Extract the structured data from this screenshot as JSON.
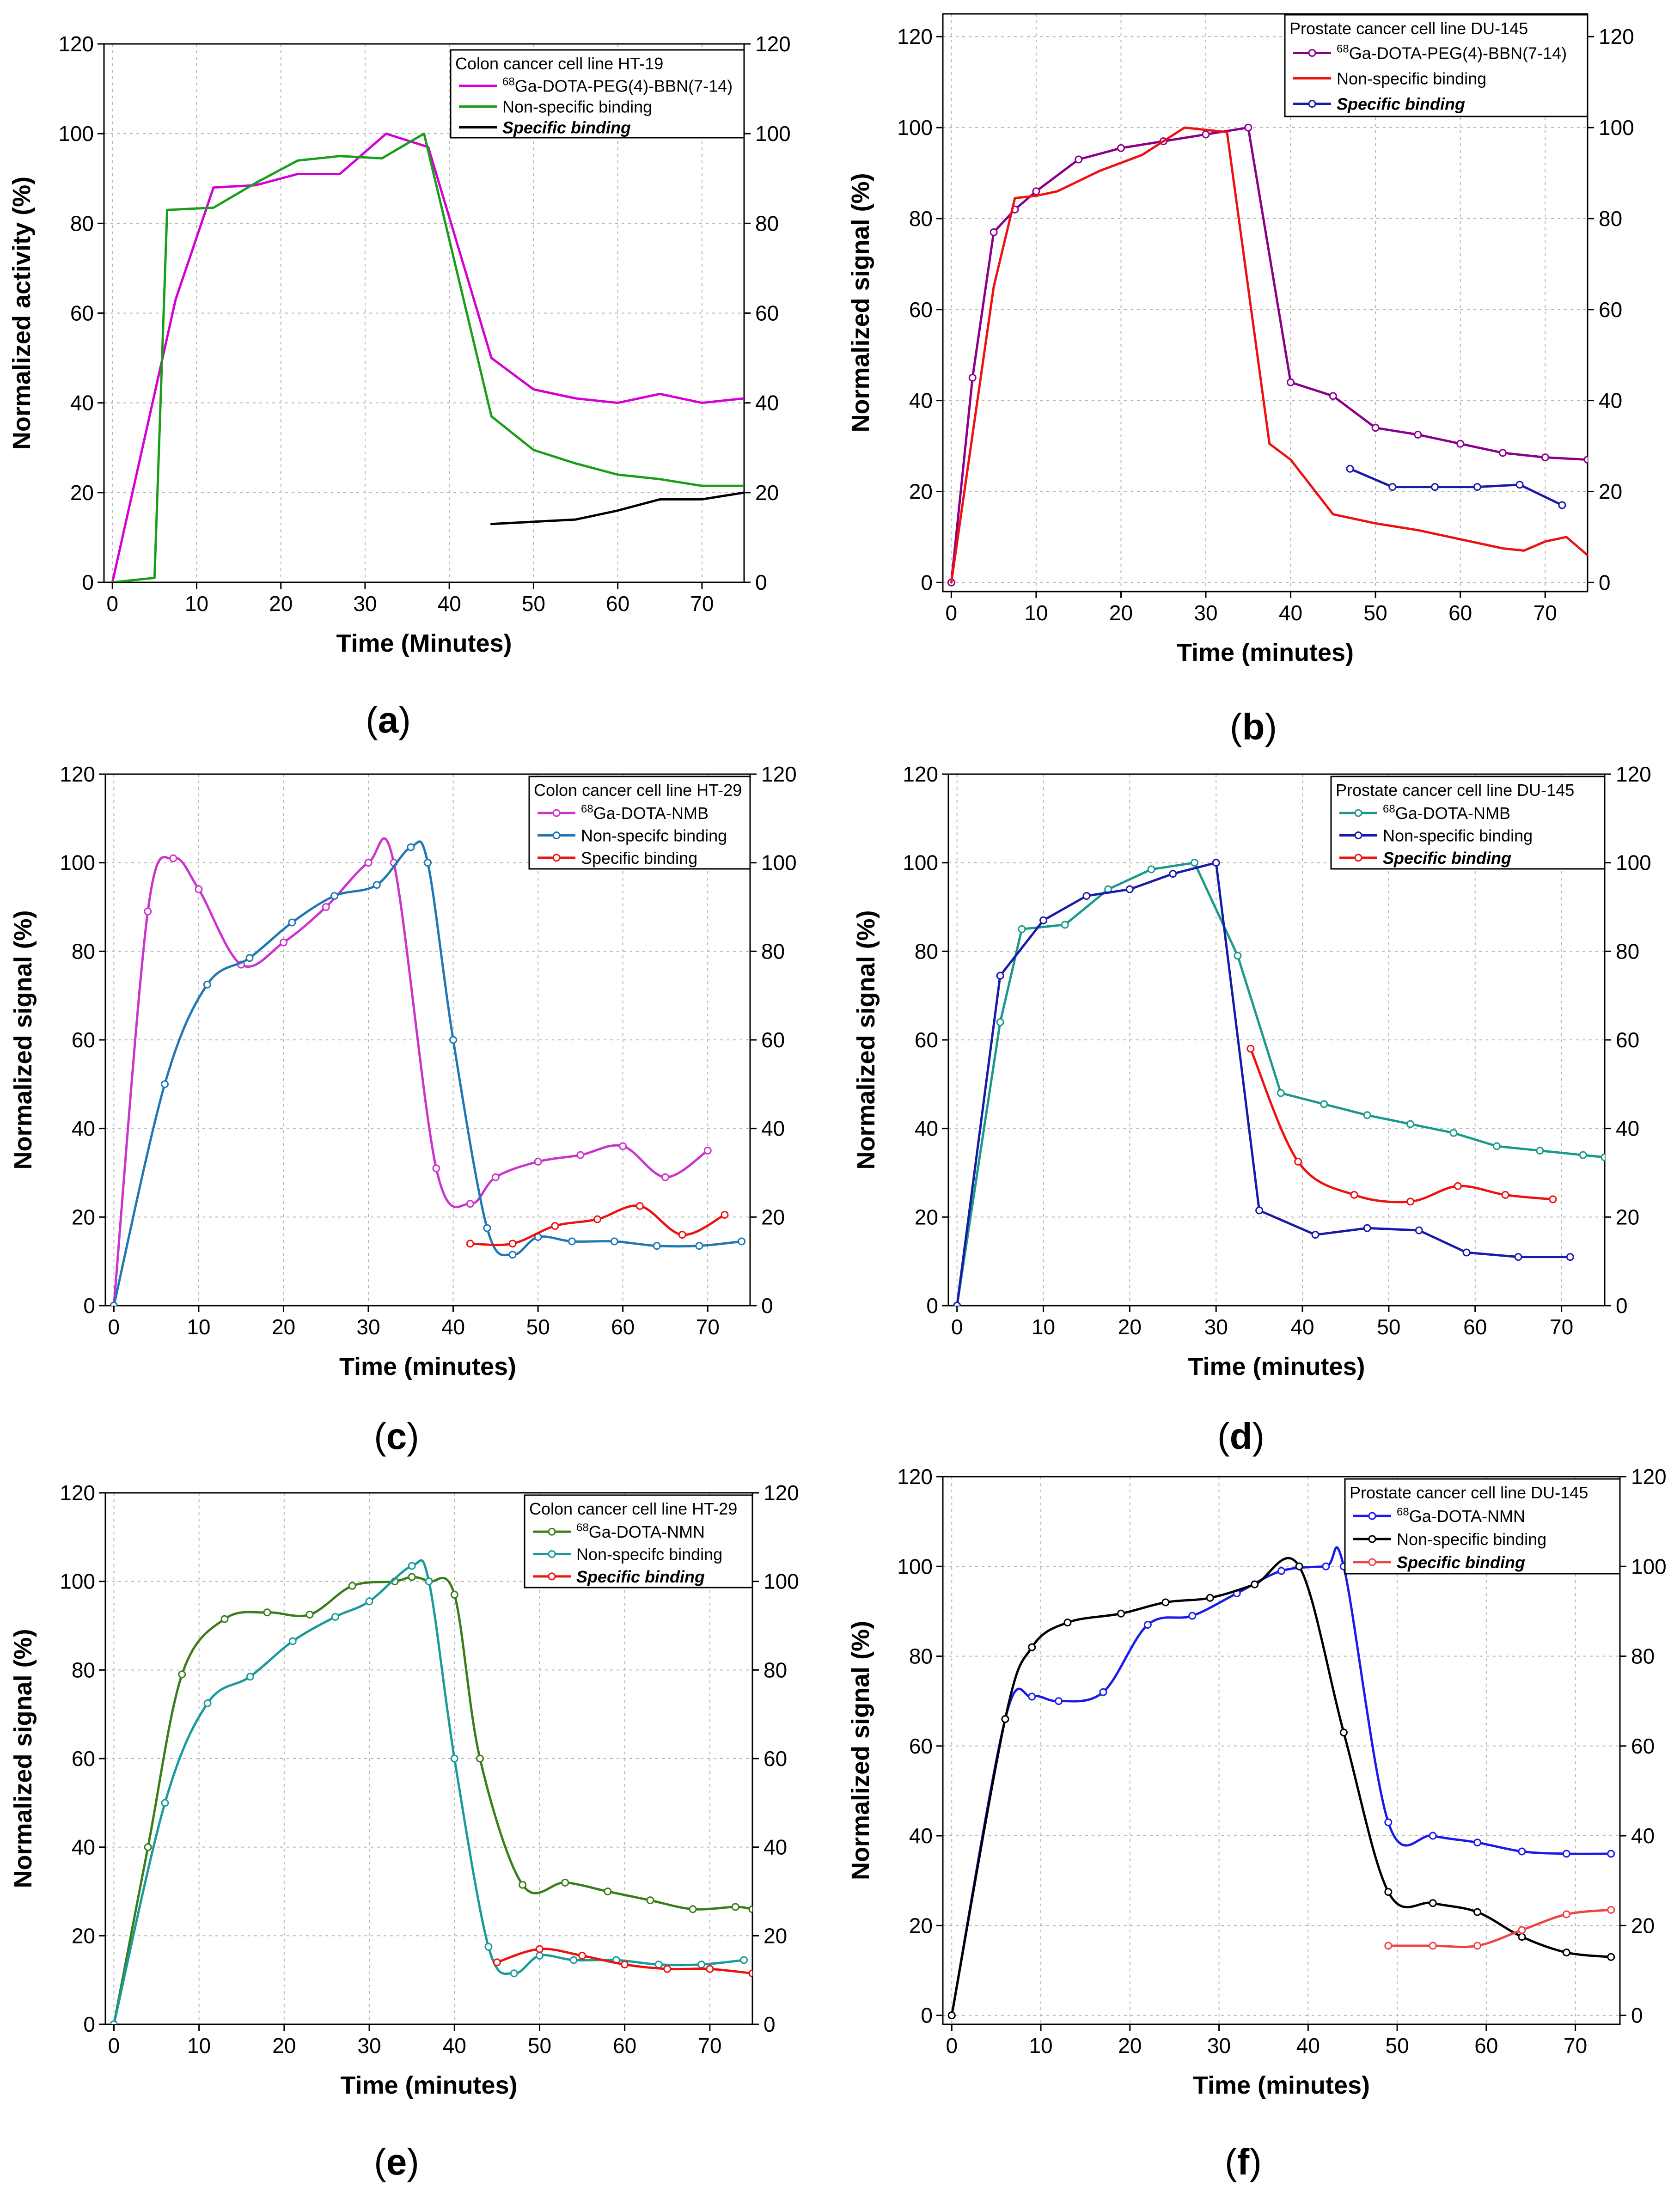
{
  "chart_data": [
    {
      "panel_label": "a",
      "type": "line",
      "xlabel": "Time (Minutes)",
      "ylabel": "Normalized activity (%)",
      "xlim": [
        -1,
        75
      ],
      "ylim": [
        0,
        120
      ],
      "xticks": [
        0,
        10,
        20,
        30,
        40,
        50,
        60,
        70
      ],
      "yticks": [
        0,
        20,
        40,
        60,
        80,
        100,
        120
      ],
      "legend_title": "Colon cancer cell line HT-19",
      "legend_position": "top-right",
      "series": [
        {
          "name": "68Ga-DOTA-PEG(4)-BBN(7-14)",
          "sup": "68",
          "name_rest": "Ga-DOTA-PEG(4)-BBN(7-14)",
          "italic": false,
          "color": "#d400d4",
          "smooth": false,
          "markers": false,
          "x": [
            0,
            7.5,
            12,
            17,
            22,
            27,
            32.5,
            37.5,
            45,
            50,
            55,
            60,
            65,
            70,
            75
          ],
          "y": [
            0,
            63,
            88,
            88.5,
            91,
            91,
            100,
            97,
            50,
            43,
            41,
            40,
            42,
            40,
            41
          ]
        },
        {
          "name": "Non-specific binding",
          "italic": false,
          "color": "#1a9e1a",
          "smooth": false,
          "markers": false,
          "x": [
            0,
            5,
            6.5,
            12,
            17,
            22,
            27,
            32,
            37,
            45,
            50,
            55,
            60,
            65,
            70,
            75
          ],
          "y": [
            0,
            1,
            83,
            83.5,
            89,
            94,
            95,
            94.5,
            100,
            37,
            29.5,
            26.5,
            24,
            23,
            21.5,
            21.5
          ]
        },
        {
          "name": "Specific binding",
          "italic": true,
          "bold": true,
          "color": "#000000",
          "smooth": false,
          "markers": false,
          "x": [
            45,
            50,
            55,
            60,
            65,
            70,
            75
          ],
          "y": [
            13,
            13.5,
            14,
            16,
            18.5,
            18.5,
            20
          ]
        }
      ]
    },
    {
      "panel_label": "b",
      "type": "line",
      "xlabel": "Time (minutes)",
      "ylabel": "Normalized signal (%)",
      "xlim": [
        -1,
        75
      ],
      "ylim": [
        -2,
        125
      ],
      "xticks": [
        0,
        10,
        20,
        30,
        40,
        50,
        60,
        70
      ],
      "yticks": [
        0,
        20,
        40,
        60,
        80,
        100,
        120
      ],
      "legend_title": "Prostate cancer cell line DU-145",
      "legend_position": "top-right",
      "series": [
        {
          "name": "68Ga-DOTA-PEG(4)-BBN(7-14)",
          "sup": "68",
          "name_rest": "Ga-DOTA-PEG(4)-BBN(7-14)",
          "italic": false,
          "color": "#8b008b",
          "smooth": false,
          "markers": true,
          "x": [
            0,
            2.5,
            5,
            7.5,
            10,
            15,
            20,
            25,
            30,
            35,
            40,
            45,
            50,
            55,
            60,
            65,
            70,
            75
          ],
          "y": [
            0,
            45,
            77,
            82,
            86,
            93,
            95.5,
            97,
            98.5,
            100,
            44,
            41,
            34,
            32.5,
            30.5,
            28.5,
            27.5,
            27
          ]
        },
        {
          "name": "Non-specific binding",
          "italic": false,
          "color": "#ee1111",
          "smooth": false,
          "markers": false,
          "x": [
            0,
            5,
            7.5,
            10,
            12.5,
            17.5,
            22.5,
            27.5,
            32.5,
            37.5,
            40,
            45,
            50,
            55,
            60,
            65,
            67.5,
            70,
            72.5,
            75
          ],
          "y": [
            0,
            65,
            84.5,
            85,
            86,
            90.5,
            94,
            100,
            99,
            30.5,
            27,
            15,
            13,
            11.5,
            9.5,
            7.5,
            7,
            9,
            10,
            6
          ]
        },
        {
          "name": "Specific binding",
          "italic": true,
          "bold": true,
          "color": "#1a1aaa",
          "smooth": false,
          "markers": true,
          "x": [
            47,
            52,
            57,
            62,
            67,
            72
          ],
          "y": [
            25,
            21,
            21,
            21,
            21.5,
            17
          ]
        }
      ]
    },
    {
      "panel_label": "c",
      "type": "line",
      "xlabel": "Time (minutes)",
      "ylabel": "Normalized signal (%)",
      "xlim": [
        -1,
        75
      ],
      "ylim": [
        0,
        120
      ],
      "xticks": [
        0,
        10,
        20,
        30,
        40,
        50,
        60,
        70
      ],
      "yticks": [
        0,
        20,
        40,
        60,
        80,
        100,
        120
      ],
      "legend_title": "Colon cancer cell line HT-29",
      "legend_position": "top-right",
      "series": [
        {
          "name": "68Ga-DOTA-NMB",
          "sup": "68",
          "name_rest": "Ga-DOTA-NMB",
          "italic": false,
          "color": "#cc33cc",
          "smooth": true,
          "markers": true,
          "x": [
            0,
            4,
            7,
            10,
            15,
            20,
            25,
            30,
            33,
            38,
            42,
            45,
            50,
            55,
            60,
            65,
            70
          ],
          "y": [
            0,
            89,
            101,
            94,
            77,
            82,
            90,
            100,
            100,
            31,
            23,
            29,
            32.5,
            34,
            36,
            29,
            35
          ]
        },
        {
          "name": "Non-specifc binding",
          "italic": false,
          "color": "#1f77b4",
          "smooth": true,
          "markers": true,
          "x": [
            0,
            6,
            11,
            16,
            21,
            26,
            31,
            35,
            37,
            40,
            44,
            47,
            50,
            54,
            59,
            64,
            69,
            74
          ],
          "y": [
            0,
            50,
            72.5,
            78.5,
            86.5,
            92.5,
            95,
            103.5,
            100,
            60,
            17.5,
            11.5,
            15.5,
            14.5,
            14.5,
            13.5,
            13.5,
            14.5
          ]
        },
        {
          "name": "Specific binding",
          "italic": false,
          "color": "#ee1111",
          "smooth": true,
          "markers": true,
          "x": [
            42,
            47,
            52,
            57,
            62,
            67,
            72
          ],
          "y": [
            14,
            14,
            18,
            19.5,
            22.5,
            16,
            20.5
          ]
        }
      ]
    },
    {
      "panel_label": "d",
      "type": "line",
      "xlabel": "Time (minutes)",
      "ylabel": "Normalized signal (%)",
      "xlim": [
        -1,
        75
      ],
      "ylim": [
        0,
        120
      ],
      "xticks": [
        0,
        10,
        20,
        30,
        40,
        50,
        60,
        70
      ],
      "yticks": [
        0,
        20,
        40,
        60,
        80,
        100,
        120
      ],
      "legend_title": "Prostate cancer cell line DU-145",
      "legend_position": "top-right",
      "series": [
        {
          "name": "68Ga-DOTA-NMB",
          "sup": "68",
          "name_rest": "Ga-DOTA-NMB",
          "italic": false,
          "color": "#1a9b8a",
          "smooth": false,
          "markers": true,
          "x": [
            0,
            5,
            7.5,
            12.5,
            17.5,
            22.5,
            27.5,
            32.5,
            37.5,
            42.5,
            47.5,
            52.5,
            57.5,
            62.5,
            67.5,
            72.5,
            75
          ],
          "y": [
            0,
            64,
            85,
            86,
            94,
            98.5,
            100,
            79,
            48,
            45.5,
            43,
            41,
            39,
            36,
            35,
            34,
            33.5
          ]
        },
        {
          "name": "Non-specific binding",
          "italic": false,
          "color": "#1a1aaa",
          "smooth": false,
          "markers": true,
          "x": [
            0,
            5,
            10,
            15,
            20,
            25,
            30,
            35,
            41.5,
            47.5,
            53.5,
            59,
            65,
            71
          ],
          "y": [
            0,
            74.5,
            87,
            92.5,
            94,
            97.5,
            100,
            21.5,
            16,
            17.5,
            17,
            12,
            11,
            11
          ]
        },
        {
          "name": "Specific binding",
          "italic": true,
          "bold": true,
          "color": "#ee1111",
          "smooth": true,
          "markers": true,
          "x": [
            34,
            39.5,
            46,
            52.5,
            58,
            63.5,
            69
          ],
          "y": [
            58,
            32.5,
            25,
            23.5,
            27,
            25,
            24
          ]
        }
      ]
    },
    {
      "panel_label": "e",
      "type": "line",
      "xlabel": "Time (minutes)",
      "ylabel": "Normalized signal (%)",
      "xlim": [
        -1,
        75
      ],
      "ylim": [
        0,
        120
      ],
      "xticks": [
        0,
        10,
        20,
        30,
        40,
        50,
        60,
        70
      ],
      "yticks": [
        0,
        20,
        40,
        60,
        80,
        100,
        120
      ],
      "legend_title": "Colon cancer cell line HT-29",
      "legend_position": "top-right",
      "series": [
        {
          "name": "68Ga-DOTA-NMN",
          "sup": "68",
          "name_rest": "Ga-DOTA-NMN",
          "italic": false,
          "color": "#3a7d1a",
          "smooth": true,
          "markers": true,
          "x": [
            0,
            4,
            8,
            13,
            18,
            23,
            28,
            33,
            35,
            37,
            40,
            43,
            48,
            53,
            58,
            63,
            68,
            73,
            75
          ],
          "y": [
            0,
            40,
            79,
            91.5,
            93,
            92.5,
            99,
            100,
            101,
            100,
            97,
            60,
            31.5,
            32,
            30,
            28,
            26,
            26.5,
            26
          ]
        },
        {
          "name": "Non-specifc binding",
          "italic": false,
          "color": "#1a9b9b",
          "smooth": true,
          "markers": true,
          "x": [
            0,
            6,
            11,
            16,
            21,
            26,
            30,
            35,
            37,
            40,
            44,
            47,
            50,
            54,
            59,
            64,
            69,
            74
          ],
          "y": [
            0,
            50,
            72.5,
            78.5,
            86.5,
            92,
            95.5,
            103.5,
            100,
            60,
            17.5,
            11.5,
            15.5,
            14.5,
            14.5,
            13.5,
            13.5,
            14.5
          ]
        },
        {
          "name": "Specific binding",
          "italic": true,
          "bold": true,
          "color": "#ee1111",
          "smooth": true,
          "markers": true,
          "x": [
            45,
            50,
            55,
            60,
            65,
            70,
            75
          ],
          "y": [
            14,
            17,
            15.5,
            13.5,
            12.5,
            12.5,
            11.5
          ]
        }
      ]
    },
    {
      "panel_label": "f",
      "type": "line",
      "xlabel": "Time (minutes)",
      "ylabel": "Normalized signal (%)",
      "xlim": [
        -1,
        75
      ],
      "ylim": [
        -2,
        120
      ],
      "xticks": [
        0,
        10,
        20,
        30,
        40,
        50,
        60,
        70
      ],
      "yticks": [
        0,
        20,
        40,
        60,
        80,
        100,
        120
      ],
      "legend_title": "Prostate cancer cell line DU-145",
      "legend_position": "top-right",
      "series": [
        {
          "name": "68Ga-DOTA-NMN",
          "sup": "68",
          "name_rest": "Ga-DOTA-NMN",
          "italic": false,
          "color": "#1a1aee",
          "smooth": true,
          "markers": true,
          "x": [
            0,
            6,
            9,
            12,
            17,
            22,
            27,
            32,
            37,
            42,
            44,
            49,
            54,
            59,
            64,
            69,
            74
          ],
          "y": [
            0,
            66,
            71,
            70,
            72,
            87,
            89,
            94,
            99,
            100,
            100,
            43,
            40,
            38.5,
            36.5,
            36,
            36
          ]
        },
        {
          "name": "Non-specific binding",
          "italic": false,
          "color": "#000000",
          "smooth": true,
          "markers": true,
          "x": [
            0,
            6,
            9,
            13,
            19,
            24,
            29,
            34,
            39,
            44,
            49,
            54,
            59,
            64,
            69,
            74
          ],
          "y": [
            0,
            66,
            82,
            87.5,
            89.5,
            92,
            93,
            96,
            100,
            63,
            27.5,
            25,
            23,
            17.5,
            14,
            13
          ]
        },
        {
          "name": "Specific binding",
          "italic": true,
          "bold": true,
          "color": "#ee4444",
          "smooth": true,
          "markers": true,
          "x": [
            49,
            54,
            59,
            64,
            69,
            74
          ],
          "y": [
            15.5,
            15.5,
            15.5,
            19,
            22.5,
            23.5
          ]
        }
      ]
    }
  ]
}
